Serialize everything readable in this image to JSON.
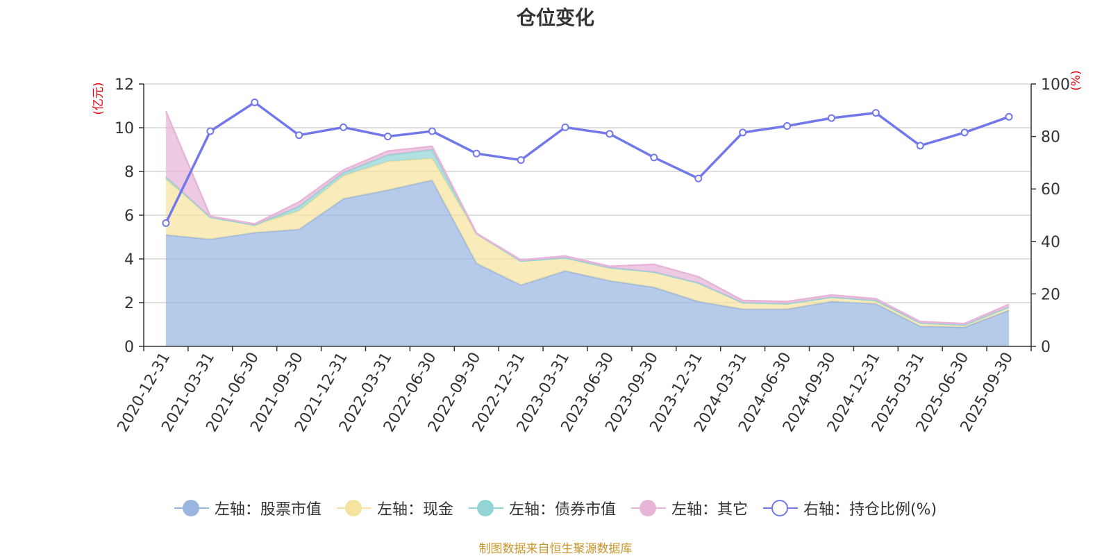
{
  "title": "仓位变化",
  "source_note": "制图数据来自恒生聚源数据库",
  "chart_data": {
    "type": "area",
    "categories": [
      "2020-12-31",
      "2021-03-31",
      "2021-06-30",
      "2021-09-30",
      "2021-12-31",
      "2022-03-31",
      "2022-06-30",
      "2022-09-30",
      "2022-12-31",
      "2023-03-31",
      "2023-06-30",
      "2023-09-30",
      "2023-12-31",
      "2024-03-31",
      "2024-06-30",
      "2024-09-30",
      "2024-12-31",
      "2025-03-31",
      "2025-06-30",
      "2025-09-30"
    ],
    "left_axis": {
      "label": "(亿元)",
      "ylim": [
        0,
        12
      ],
      "ticks": [
        0,
        2,
        4,
        6,
        8,
        10,
        12
      ]
    },
    "right_axis": {
      "label": "(%)",
      "ylim": [
        0,
        100
      ],
      "ticks": [
        0,
        20,
        40,
        60,
        80,
        100
      ]
    },
    "stacked_series": [
      {
        "name": "左轴：股票市值",
        "color": "#9ab6e0",
        "values": [
          5.1,
          4.9,
          5.2,
          5.35,
          6.75,
          7.15,
          7.6,
          3.8,
          2.8,
          3.45,
          3.0,
          2.7,
          2.05,
          1.7,
          1.7,
          2.05,
          1.95,
          0.92,
          0.88,
          1.65
        ]
      },
      {
        "name": "左轴：现金",
        "color": "#f6e3a0",
        "values": [
          2.55,
          1.0,
          0.35,
          0.85,
          1.05,
          1.3,
          1.0,
          1.35,
          1.1,
          0.6,
          0.6,
          0.7,
          0.85,
          0.3,
          0.25,
          0.2,
          0.15,
          0.15,
          0.1,
          0.15
        ]
      },
      {
        "name": "左轴：债券市值",
        "color": "#93d4d4",
        "values": [
          0.1,
          0.0,
          0.0,
          0.2,
          0.15,
          0.3,
          0.4,
          0.0,
          0.0,
          0.0,
          0.0,
          0.0,
          0.0,
          0.0,
          0.0,
          0.0,
          0.0,
          0.0,
          0.0,
          0.0
        ]
      },
      {
        "name": "左轴：其它",
        "color": "#e8b4d8",
        "values": [
          3.0,
          0.05,
          0.05,
          0.2,
          0.12,
          0.18,
          0.15,
          0.02,
          0.05,
          0.08,
          0.06,
          0.35,
          0.28,
          0.1,
          0.1,
          0.1,
          0.08,
          0.06,
          0.06,
          0.12
        ]
      }
    ],
    "line_series": {
      "name": "右轴：持仓比例(%)",
      "color": "#7277ea",
      "axis": "right",
      "values": [
        47.0,
        82.0,
        93.0,
        80.5,
        83.5,
        80.0,
        82.0,
        73.5,
        71.0,
        83.5,
        81.0,
        72.0,
        64.0,
        81.5,
        84.0,
        87.0,
        89.0,
        76.5,
        81.5,
        87.5
      ]
    },
    "grid": true,
    "legend_position": "bottom"
  }
}
